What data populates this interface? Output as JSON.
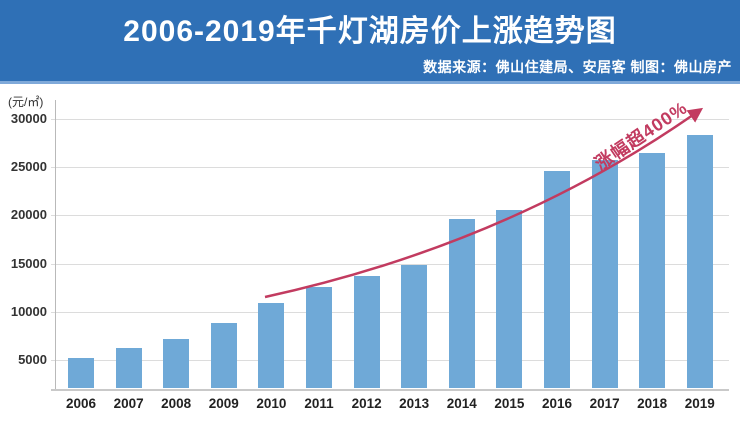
{
  "header": {
    "title": "2006-2019年千灯湖房价上涨趋势图",
    "source_note": "数据来源：佛山住建局、安居客 制图：佛山房产"
  },
  "chart_data": {
    "type": "bar",
    "title": "2006-2019年千灯湖房价上涨趋势图",
    "unit_label": "(元/㎡)",
    "xlabel": "",
    "ylabel": "元/㎡",
    "categories": [
      "2006",
      "2007",
      "2008",
      "2009",
      "2010",
      "2011",
      "2012",
      "2013",
      "2014",
      "2015",
      "2016",
      "2017",
      "2018",
      "2019"
    ],
    "values": [
      5200,
      6200,
      7200,
      8800,
      10900,
      12600,
      13700,
      14900,
      19600,
      20600,
      24600,
      25700,
      26500,
      28300
    ],
    "yticks": [
      30000,
      25000,
      20000,
      15000,
      10000,
      5000
    ],
    "ylim": [
      2100,
      32000
    ],
    "grid": true,
    "legend": "none",
    "annotation": "涨幅超400%",
    "annotation_meaning": "price increase over 400%, shown along rising arrow"
  },
  "colors": {
    "header_bg": "#2f70b6",
    "header_strip": "#7fa9d9",
    "title_text": "#ffffff",
    "background": "#ffffff",
    "bar": "#6fa9d7",
    "arrow": "#c23b60",
    "gridline": "#dcdcdc",
    "axis_line": "#b9b9b9",
    "text_dark": "#333333"
  }
}
